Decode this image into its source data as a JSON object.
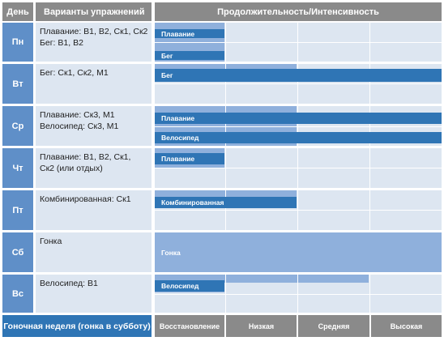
{
  "header": {
    "day": "День",
    "exercises": "Варианты упражнений",
    "duration": "Продолжительность/Интенсивность"
  },
  "rows": [
    {
      "day": "Пн",
      "lines": [
        "Плавание: В1, В2, Ск1, Ск2",
        "Бег: В1, В2"
      ],
      "bars": [
        {
          "label": "Плавание",
          "level": 1.0
        },
        {
          "label": "Бег",
          "level": 1.0
        }
      ]
    },
    {
      "day": "Вт",
      "lines": [
        "Бег: Ск1, Ск2, М1"
      ],
      "bars": [
        {
          "label": "Бег",
          "level": 3.0
        }
      ]
    },
    {
      "day": "Ср",
      "lines": [
        "Плавание: Ск3, М1",
        "Велосипед: Ск3, М1"
      ],
      "bars": [
        {
          "label": "Плавание",
          "level": 3.0
        },
        {
          "label": "Велосипед",
          "level": 3.0
        }
      ]
    },
    {
      "day": "Чт",
      "lines": [
        "Плавание: В1, В2, Ск1, Ск2 (или отдых)"
      ],
      "bars": [
        {
          "label": "Плавание",
          "level": 1.0
        }
      ]
    },
    {
      "day": "Пт",
      "lines": [
        "Комбинированная: Ск1"
      ],
      "bars": [
        {
          "label": "Комбинированная",
          "level": 2.0
        }
      ]
    },
    {
      "day": "Сб",
      "lines": [
        "Гонка"
      ],
      "bars": [
        {
          "label": "Гонка",
          "level": 3.0
        }
      ]
    },
    {
      "day": "Вс",
      "lines": [
        "Велосипед: В1"
      ],
      "bars": [
        {
          "label": "Велосипед",
          "level": 1.0
        }
      ]
    }
  ],
  "footer": {
    "title": "Гоночная неделя (гонка в субботу)",
    "scale": [
      "Восстановление",
      "Низкая",
      "Средняя",
      "Высокая"
    ]
  },
  "colors": {
    "day_cell": "#5f8fc8",
    "cell_background": "#dde6f1",
    "bar_light": "#8fb0dc",
    "bar_dark": "#2f75b5",
    "header": "#8a8a8a"
  }
}
